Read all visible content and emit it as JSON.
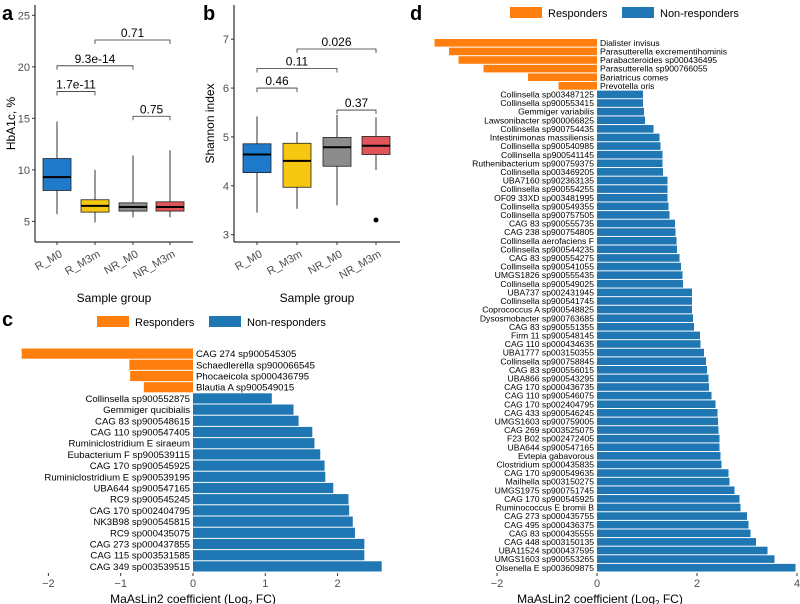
{
  "colors": {
    "responders": "#FF7F0E",
    "non_responders": "#1F77B4",
    "box_R_M0": "#1F7ACC",
    "box_R_M3m": "#F5C710",
    "box_NR_M0": "#8C8C8C",
    "box_NR_M3m": "#E05559"
  },
  "chart_data": [
    {
      "panel": "a",
      "type": "box",
      "xlabel": "Sample group",
      "ylabel": "HbA1c, %",
      "ylim": [
        3,
        26
      ],
      "yticks": [
        5,
        10,
        15,
        20,
        25
      ],
      "categories": [
        "R_M0",
        "R_M3m",
        "NR_M0",
        "NR_M3m"
      ],
      "boxes": [
        {
          "group": "R_M0",
          "min": 5.7,
          "q1": 8.0,
          "median": 9.3,
          "q3": 11.1,
          "max": 14.7
        },
        {
          "group": "R_M3m",
          "min": 4.9,
          "q1": 5.9,
          "median": 6.5,
          "q3": 7.1,
          "max": 10.0
        },
        {
          "group": "NR_M0",
          "min": 5.4,
          "q1": 6.0,
          "median": 6.4,
          "q3": 6.8,
          "max": 11.4
        },
        {
          "group": "NR_M3m",
          "min": 5.4,
          "q1": 6.0,
          "median": 6.4,
          "q3": 6.9,
          "max": 11.9
        }
      ],
      "comparisons": [
        {
          "from": "R_M0",
          "to": "R_M3m",
          "y": 17.6,
          "label": "1.7e-11"
        },
        {
          "from": "R_M0",
          "to": "NR_M0",
          "y": 20.1,
          "label": "9.3e-14"
        },
        {
          "from": "R_M3m",
          "to": "NR_M3m",
          "y": 22.6,
          "label": "0.71"
        },
        {
          "from": "NR_M0",
          "to": "NR_M3m",
          "y": 15.2,
          "label": "0.75"
        }
      ]
    },
    {
      "panel": "b",
      "type": "box",
      "xlabel": "Sample group",
      "ylabel": "Shannon index",
      "ylim": [
        2.85,
        7.7
      ],
      "yticks": [
        3,
        4,
        5,
        6,
        7
      ],
      "categories": [
        "R_M0",
        "R_M3m",
        "NR_M0",
        "NR_M3m"
      ],
      "boxes": [
        {
          "group": "R_M0",
          "min": 3.45,
          "q1": 4.27,
          "median": 4.64,
          "q3": 4.86,
          "max": 5.42
        },
        {
          "group": "R_M3m",
          "min": 3.53,
          "q1": 3.97,
          "median": 4.51,
          "q3": 4.87,
          "max": 5.1
        },
        {
          "group": "NR_M0",
          "min": 3.6,
          "q1": 4.4,
          "median": 4.79,
          "q3": 4.99,
          "max": 5.45
        },
        {
          "group": "NR_M3m",
          "min": 4.32,
          "q1": 4.64,
          "median": 4.82,
          "q3": 5.01,
          "max": 5.4,
          "outliers": [
            3.3
          ]
        }
      ],
      "comparisons": [
        {
          "from": "R_M0",
          "to": "R_M3m",
          "y": 6.0,
          "label": "0.46"
        },
        {
          "from": "R_M0",
          "to": "NR_M0",
          "y": 6.4,
          "label": "0.11"
        },
        {
          "from": "R_M3m",
          "to": "NR_M3m",
          "y": 6.8,
          "label": "0.026"
        },
        {
          "from": "NR_M0",
          "to": "NR_M3m",
          "y": 5.55,
          "label": "0.37"
        }
      ]
    },
    {
      "panel": "c",
      "type": "bar",
      "orientation": "horizontal",
      "xlabel": "MaAsLin2 coefficient (Log",
      "xlabel_sub": "2",
      "xlabel_end": " FC)",
      "xticks": [
        -2,
        -1,
        0,
        1,
        2
      ],
      "xlim": [
        -2.45,
        2.7
      ],
      "legend": [
        {
          "name": "Responders",
          "key": "responders"
        },
        {
          "name": "Non-responders",
          "key": "non_responders"
        }
      ],
      "legend_position": "top",
      "bars": [
        {
          "label": "CAG 274 sp900545305",
          "value": -2.37,
          "group": "responders"
        },
        {
          "label": "Schaedlerella sp900066545",
          "value": -0.88,
          "group": "responders"
        },
        {
          "label": "Phocaeicola sp000436795",
          "value": -0.87,
          "group": "responders"
        },
        {
          "label": "Blautia A sp900549015",
          "value": -0.68,
          "group": "responders"
        },
        {
          "label": "Collinsella sp900552875",
          "value": 1.09,
          "group": "non_responders"
        },
        {
          "label": "Gemmiger qucibialis",
          "value": 1.39,
          "group": "non_responders"
        },
        {
          "label": "CAG 83 sp900548615",
          "value": 1.46,
          "group": "non_responders"
        },
        {
          "label": "CAG 110 sp900547405",
          "value": 1.65,
          "group": "non_responders"
        },
        {
          "label": "Ruminiclostridium E siraeum",
          "value": 1.68,
          "group": "non_responders"
        },
        {
          "label": "Eubacterium F sp900539115",
          "value": 1.76,
          "group": "non_responders"
        },
        {
          "label": "CAG 170 sp900545925",
          "value": 1.82,
          "group": "non_responders"
        },
        {
          "label": "Ruminiclostridium E sp900539195",
          "value": 1.83,
          "group": "non_responders"
        },
        {
          "label": "UBA644 sp900547165",
          "value": 1.94,
          "group": "non_responders"
        },
        {
          "label": "RC9 sp900545245",
          "value": 2.15,
          "group": "non_responders"
        },
        {
          "label": "CAG 170 sp002404795",
          "value": 2.16,
          "group": "non_responders"
        },
        {
          "label": "NK3B98 sp900545815",
          "value": 2.21,
          "group": "non_responders"
        },
        {
          "label": "RC9 sp000435075",
          "value": 2.24,
          "group": "non_responders"
        },
        {
          "label": "CAG 273 sp000437855",
          "value": 2.37,
          "group": "non_responders"
        },
        {
          "label": "CAG 115 sp003531585",
          "value": 2.37,
          "group": "non_responders"
        },
        {
          "label": "CAG 349 sp003539515",
          "value": 2.61,
          "group": "non_responders"
        }
      ]
    },
    {
      "panel": "d",
      "type": "bar",
      "orientation": "horizontal",
      "xlabel": "MaAsLin2 coefficient (Log",
      "xlabel_sub": "2",
      "xlabel_end": " FC)",
      "xticks": [
        -2,
        0,
        2,
        4
      ],
      "xlim": [
        -3.3,
        4.0
      ],
      "legend": [
        {
          "name": "Responders",
          "key": "responders"
        },
        {
          "name": "Non-responders",
          "key": "non_responders"
        }
      ],
      "legend_position": "top",
      "bars": [
        {
          "label": "Dialister invisus",
          "value": -3.25,
          "group": "responders"
        },
        {
          "label": "Parasutterella excrementihominis",
          "value": -2.96,
          "group": "responders"
        },
        {
          "label": "Parabacteroides sp000436495",
          "value": -2.77,
          "group": "responders"
        },
        {
          "label": "Parasutterella sp900766055",
          "value": -2.27,
          "group": "responders"
        },
        {
          "label": "Bariatricus comes",
          "value": -1.38,
          "group": "responders"
        },
        {
          "label": "Prevotella oris",
          "value": -0.77,
          "group": "responders"
        },
        {
          "label": "Collinsella sp003487125",
          "value": 0.92,
          "group": "non_responders"
        },
        {
          "label": "Collinsella sp900553415",
          "value": 0.92,
          "group": "non_responders"
        },
        {
          "label": "Gemmiger variabilis",
          "value": 0.94,
          "group": "non_responders"
        },
        {
          "label": "Lawsonibacter sp900066825",
          "value": 0.96,
          "group": "non_responders"
        },
        {
          "label": "Collinsella sp900754435",
          "value": 1.13,
          "group": "non_responders"
        },
        {
          "label": "Intestinimonas massiliensis",
          "value": 1.25,
          "group": "non_responders"
        },
        {
          "label": "Collinsella sp900540985",
          "value": 1.27,
          "group": "non_responders"
        },
        {
          "label": "Collinsella sp900541145",
          "value": 1.31,
          "group": "non_responders"
        },
        {
          "label": "Ruthenibacterium sp900759375",
          "value": 1.31,
          "group": "non_responders"
        },
        {
          "label": "Collinsella sp003469205",
          "value": 1.32,
          "group": "non_responders"
        },
        {
          "label": "UBA7160 sp902363135",
          "value": 1.41,
          "group": "non_responders"
        },
        {
          "label": "Collinsella sp900554255",
          "value": 1.41,
          "group": "non_responders"
        },
        {
          "label": "OF09 33XD sp003481995",
          "value": 1.41,
          "group": "non_responders"
        },
        {
          "label": "Collinsella sp900549355",
          "value": 1.43,
          "group": "non_responders"
        },
        {
          "label": "Collinsella sp900757505",
          "value": 1.45,
          "group": "non_responders"
        },
        {
          "label": "CAG 83 sp900555735",
          "value": 1.56,
          "group": "non_responders"
        },
        {
          "label": "CAG 238 sp900754805",
          "value": 1.57,
          "group": "non_responders"
        },
        {
          "label": "Collinsella aerofaciens F",
          "value": 1.59,
          "group": "non_responders"
        },
        {
          "label": "Collinsella sp900544235",
          "value": 1.6,
          "group": "non_responders"
        },
        {
          "label": "CAG 83 sp900554275",
          "value": 1.65,
          "group": "non_responders"
        },
        {
          "label": "Collinsella sp900541055",
          "value": 1.68,
          "group": "non_responders"
        },
        {
          "label": "UMGS1826 sp900555435",
          "value": 1.71,
          "group": "non_responders"
        },
        {
          "label": "Collinsella sp900549025",
          "value": 1.72,
          "group": "non_responders"
        },
        {
          "label": "UBA737 sp002431945",
          "value": 1.9,
          "group": "non_responders"
        },
        {
          "label": "Collinsella sp900541745",
          "value": 1.9,
          "group": "non_responders"
        },
        {
          "label": "Coprococcus A sp900548825",
          "value": 1.9,
          "group": "non_responders"
        },
        {
          "label": "Dysosmobacter sp900763685",
          "value": 1.92,
          "group": "non_responders"
        },
        {
          "label": "CAG 83 sp900551355",
          "value": 1.94,
          "group": "non_responders"
        },
        {
          "label": "Firm 11 sp900548145",
          "value": 2.06,
          "group": "non_responders"
        },
        {
          "label": "CAG 110 sp000434635",
          "value": 2.07,
          "group": "non_responders"
        },
        {
          "label": "UBA1777 sp003150355",
          "value": 2.14,
          "group": "non_responders"
        },
        {
          "label": "Collinsella sp900758845",
          "value": 2.18,
          "group": "non_responders"
        },
        {
          "label": "CAG 83 sp900556015",
          "value": 2.2,
          "group": "non_responders"
        },
        {
          "label": "UBA866 sp900543295",
          "value": 2.23,
          "group": "non_responders"
        },
        {
          "label": "CAG 170 sp000436735",
          "value": 2.24,
          "group": "non_responders"
        },
        {
          "label": "CAG 110 sp900546075",
          "value": 2.29,
          "group": "non_responders"
        },
        {
          "label": "CAG 170 sp002404795",
          "value": 2.37,
          "group": "non_responders"
        },
        {
          "label": "CAG 433 sp900546245",
          "value": 2.41,
          "group": "non_responders"
        },
        {
          "label": "UMGS1603 sp900759005",
          "value": 2.42,
          "group": "non_responders"
        },
        {
          "label": "CAG 269 sp003525075",
          "value": 2.43,
          "group": "non_responders"
        },
        {
          "label": "F23 B02 sp002472405",
          "value": 2.45,
          "group": "non_responders"
        },
        {
          "label": "UBA644 sp900547165",
          "value": 2.45,
          "group": "non_responders"
        },
        {
          "label": "Evtepia gabavorous",
          "value": 2.47,
          "group": "non_responders"
        },
        {
          "label": "Clostridium sp000435835",
          "value": 2.49,
          "group": "non_responders"
        },
        {
          "label": "CAG 170 sp900549635",
          "value": 2.63,
          "group": "non_responders"
        },
        {
          "label": "Mailhella sp003150275",
          "value": 2.65,
          "group": "non_responders"
        },
        {
          "label": "UMGS1975 sp900751745",
          "value": 2.75,
          "group": "non_responders"
        },
        {
          "label": "CAG 170 sp900545925",
          "value": 2.85,
          "group": "non_responders"
        },
        {
          "label": "Ruminococcus E bromii B",
          "value": 2.87,
          "group": "non_responders"
        },
        {
          "label": "CAG 273 sp000435755",
          "value": 3.0,
          "group": "non_responders"
        },
        {
          "label": "CAG 495 sp000436375",
          "value": 3.03,
          "group": "non_responders"
        },
        {
          "label": "CAG 83 sp000435555",
          "value": 3.07,
          "group": "non_responders"
        },
        {
          "label": "CAG 448 sp003150135",
          "value": 3.18,
          "group": "non_responders"
        },
        {
          "label": "UBA11524 sp000437595",
          "value": 3.41,
          "group": "non_responders"
        },
        {
          "label": "UMGS1603 sp900553265",
          "value": 3.55,
          "group": "non_responders"
        },
        {
          "label": "Olsenella E sp003609875",
          "value": 3.97,
          "group": "non_responders"
        }
      ]
    }
  ]
}
